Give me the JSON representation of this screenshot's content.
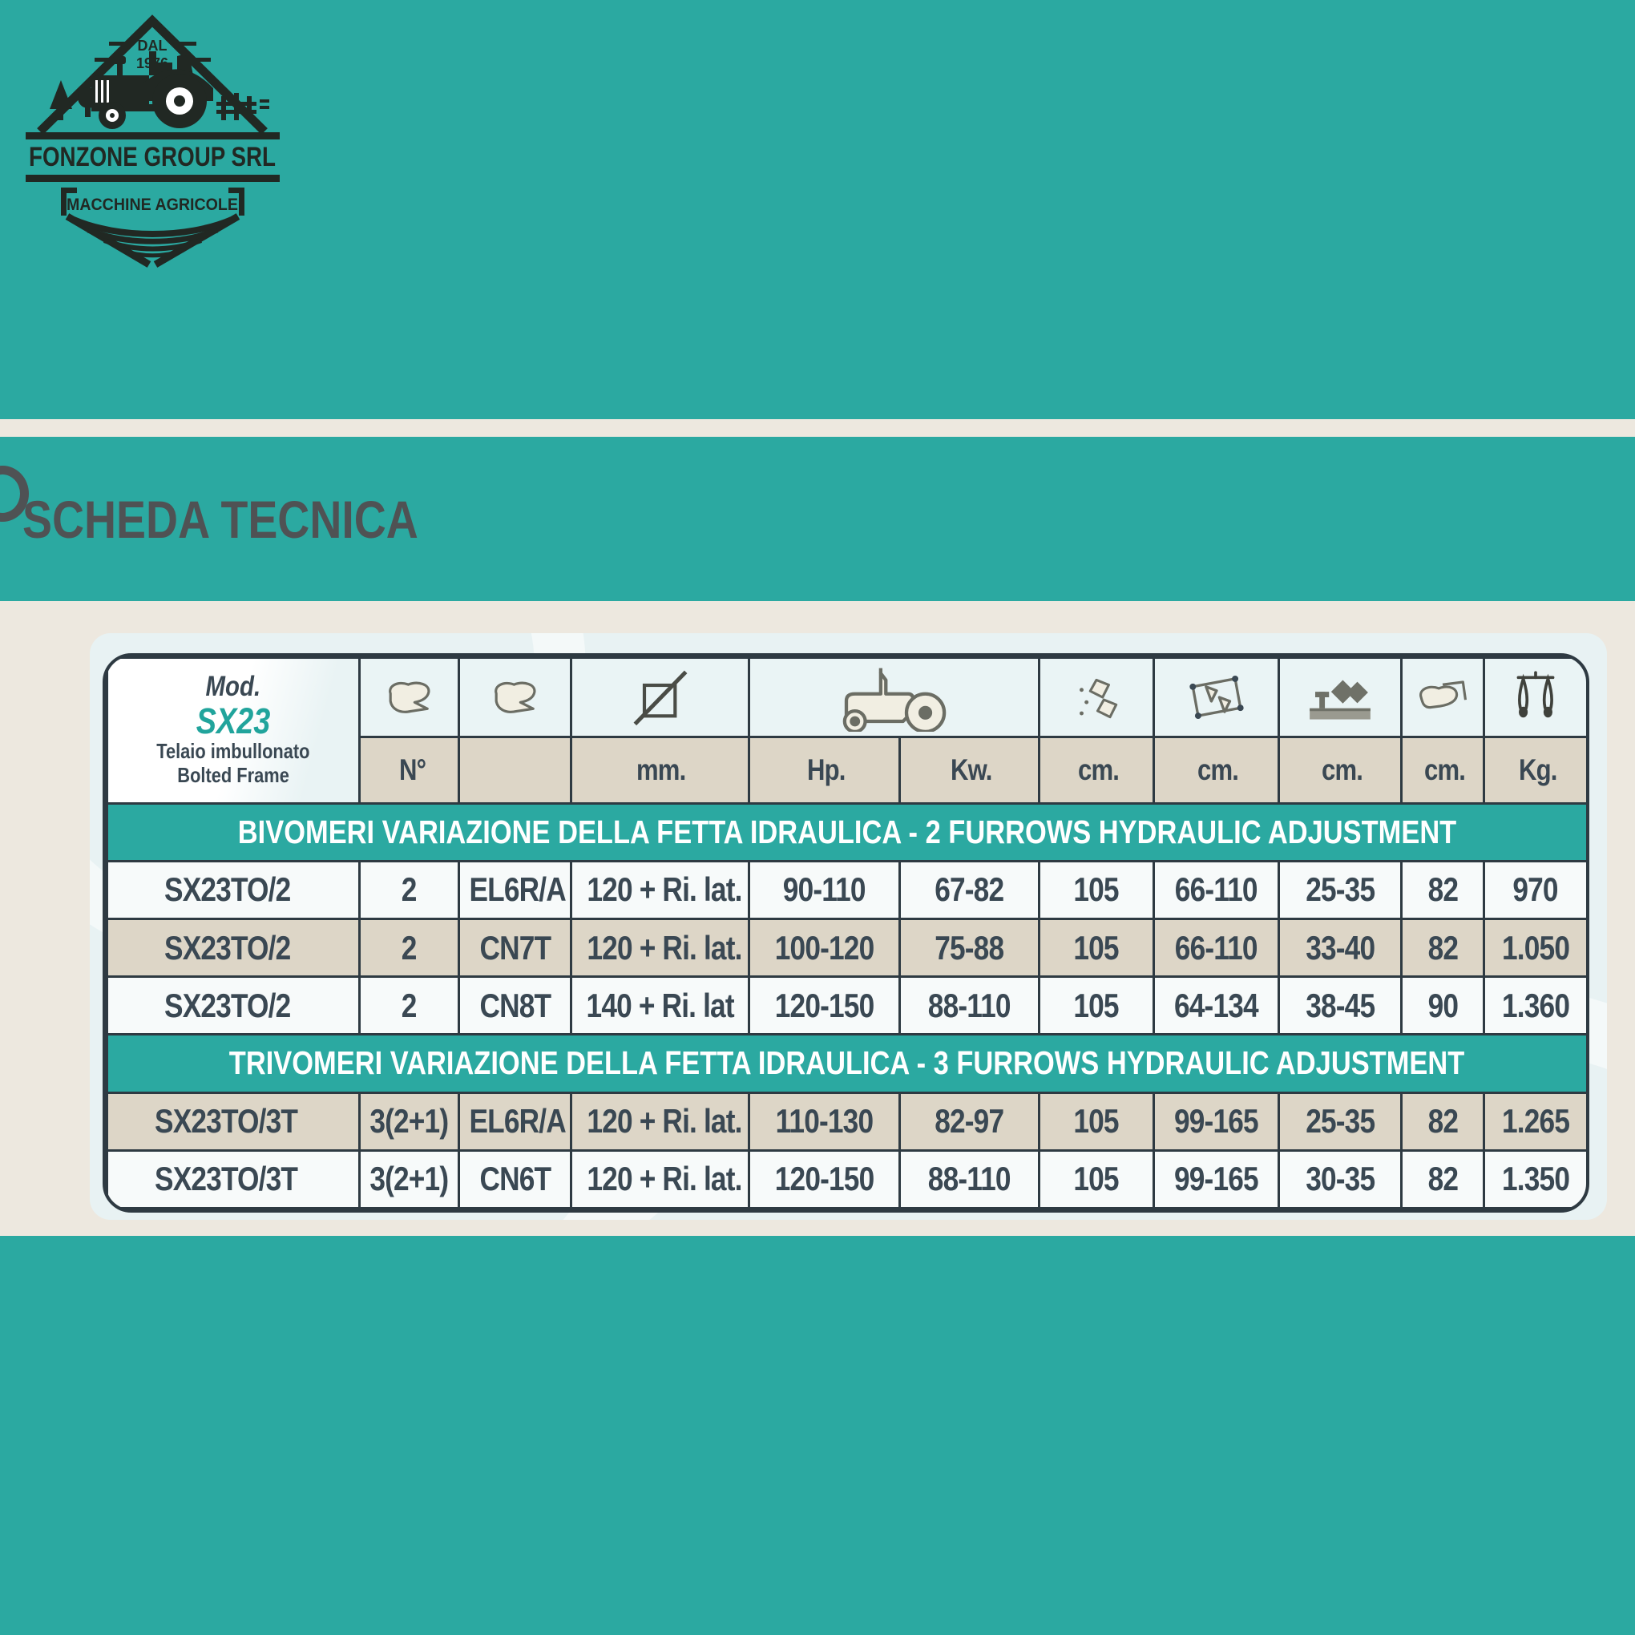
{
  "brand": {
    "name": "FONZONE GROUP SRL",
    "tagline": "MACCHINE AGRICOLE",
    "since_label": "DAL",
    "since_year": "1976"
  },
  "title": "SCHEDA TECNICA",
  "table": {
    "model_header": {
      "mod": "Mod.",
      "code": "SX23",
      "frame_it": "Telaio imbullonato",
      "frame_en": "Bolted Frame"
    },
    "units": [
      "N°",
      "",
      "mm.",
      "Hp.",
      "Kw.",
      "cm.",
      "cm.",
      "cm.",
      "cm.",
      "Kg."
    ],
    "icons": [
      "plow-body",
      "plow-body",
      "diameter",
      "tractor",
      "working-width",
      "frame-width",
      "under-frame-clearance",
      "plow-top-view",
      "weight-scale"
    ],
    "sections": [
      {
        "header": "BIVOMERI VARIAZIONE DELLA FETTA IDRAULICA - 2 FURROWS HYDRAULIC ADJUSTMENT",
        "rows": [
          [
            "SX23TO/2",
            "2",
            "EL6R/A",
            "120 + Ri. lat.",
            "90-110",
            "67-82",
            "105",
            "66-110",
            "25-35",
            "82",
            "970"
          ],
          [
            "SX23TO/2",
            "2",
            "CN7T",
            "120 + Ri. lat.",
            "100-120",
            "75-88",
            "105",
            "66-110",
            "33-40",
            "82",
            "1.050"
          ],
          [
            "SX23TO/2",
            "2",
            "CN8T",
            "140 + Ri. lat",
            "120-150",
            "88-110",
            "105",
            "64-134",
            "38-45",
            "90",
            "1.360"
          ]
        ]
      },
      {
        "header": "TRIVOMERI VARIAZIONE DELLA FETTA IDRAULICA - 3 FURROWS HYDRAULIC ADJUSTMENT",
        "rows": [
          [
            "SX23TO/3T",
            "3(2+1)",
            "EL6R/A",
            "120 + Ri. lat.",
            "110-130",
            "82-97",
            "105",
            "99-165",
            "25-35",
            "82",
            "1.265"
          ],
          [
            "SX23TO/3T",
            "3(2+1)",
            "CN6T",
            "120 + Ri. lat.",
            "120-150",
            "88-110",
            "105",
            "99-165",
            "30-35",
            "82",
            "1.350"
          ]
        ]
      }
    ]
  },
  "colors": {
    "teal": "#2BA9A1",
    "cream": "#EDE8DF",
    "tan": "#DDD6C7",
    "pale_blue": "#E8F2F3",
    "header_blue": "#EAF4F5",
    "border": "#2E3A42",
    "text": "#3A4853",
    "title_text": "#4F5254",
    "accent": "#21A49C",
    "logo_ink": "#212823"
  }
}
